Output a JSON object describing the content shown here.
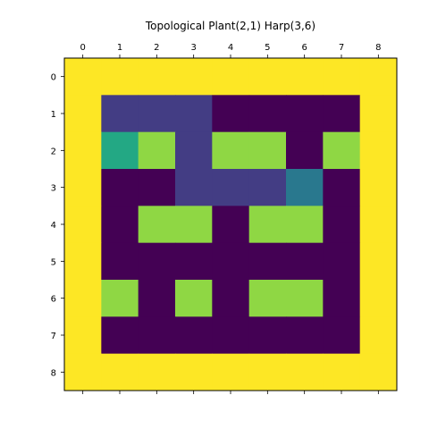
{
  "chart_data": {
    "type": "heatmap",
    "title": "Topological Plant(2,1) Harp(3,6)",
    "xlabel": "",
    "ylabel": "",
    "x_ticks": [
      "0",
      "1",
      "2",
      "3",
      "4",
      "5",
      "6",
      "7",
      "8"
    ],
    "y_ticks": [
      "0",
      "1",
      "2",
      "3",
      "4",
      "5",
      "6",
      "7",
      "8"
    ],
    "x_axis_position": "top",
    "colormap": "viridis",
    "value_range": [
      0,
      1
    ],
    "grid": false,
    "values": [
      [
        1,
        1,
        1,
        1,
        1,
        1,
        1,
        1,
        1
      ],
      [
        1,
        0.15,
        0.15,
        0.15,
        0,
        0,
        0,
        0,
        1
      ],
      [
        1,
        0.6,
        0.8,
        0.15,
        0.8,
        0.8,
        0,
        0.8,
        1
      ],
      [
        1,
        0,
        0,
        0.15,
        0.15,
        0.15,
        0.4,
        0,
        1
      ],
      [
        1,
        0,
        0.8,
        0.8,
        0,
        0.8,
        0.8,
        0,
        1
      ],
      [
        1,
        0,
        0,
        0,
        0,
        0,
        0,
        0,
        1
      ],
      [
        1,
        0.8,
        0,
        0.8,
        0,
        0.8,
        0.8,
        0,
        1
      ],
      [
        1,
        0,
        0,
        0,
        0,
        0,
        0,
        0,
        1
      ],
      [
        1,
        1,
        1,
        1,
        1,
        1,
        1,
        1,
        1
      ]
    ]
  },
  "colors": {
    "0": "#440154",
    "0.15": "#433d84",
    "0.4": "#29788e",
    "0.6": "#23a884",
    "0.8": "#8fd744",
    "1": "#fde725"
  }
}
